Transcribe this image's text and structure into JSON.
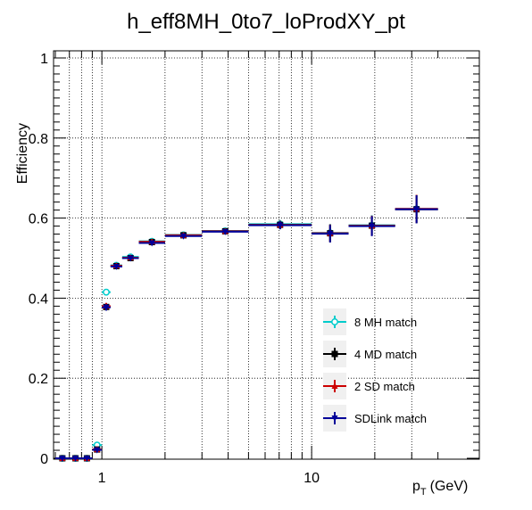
{
  "chart_data": {
    "type": "scatter",
    "title": "h_eff8MH_0to7_loProdXY_pt",
    "xlabel_main": "p",
    "xlabel_sub": "T",
    "xlabel_unit": "(GeV)",
    "ylabel": "Efficiency",
    "xscale": "log",
    "xlim": [
      0.6,
      40
    ],
    "ylim": [
      0,
      1.02
    ],
    "grid": true,
    "legend_position": "bottom-right",
    "x_tick_labels": [
      {
        "value": 1,
        "label": "1"
      },
      {
        "value": 10,
        "label": "10"
      }
    ],
    "y_tick_labels": [
      {
        "value": 0,
        "label": "0"
      },
      {
        "value": 0.2,
        "label": "0.2"
      },
      {
        "value": 0.4,
        "label": "0.4"
      },
      {
        "value": 0.6,
        "label": "0.6"
      },
      {
        "value": 0.8,
        "label": "0.8"
      },
      {
        "value": 1,
        "label": "1"
      }
    ],
    "bins": [
      [
        0.6,
        0.7
      ],
      [
        0.7,
        0.8
      ],
      [
        0.8,
        0.9
      ],
      [
        0.9,
        1.0
      ],
      [
        1.0,
        1.1
      ],
      [
        1.1,
        1.25
      ],
      [
        1.25,
        1.5
      ],
      [
        1.5,
        2.0
      ],
      [
        2.0,
        3.0
      ],
      [
        3.0,
        5.0
      ],
      [
        5.0,
        10.0
      ],
      [
        10.0,
        15.0
      ],
      [
        15.0,
        25.0
      ],
      [
        25.0,
        40.0
      ]
    ],
    "series": [
      {
        "name": "8 MH match",
        "color": "#00cccc",
        "marker": "open-circle",
        "values": [
          0.0,
          0.0,
          0.0,
          0.033,
          0.415,
          0.482,
          0.503,
          0.542,
          0.558,
          0.568,
          0.585,
          0.563,
          0.582,
          0.623
        ],
        "errors": [
          0.002,
          0.002,
          0.002,
          0.007,
          0.008,
          0.006,
          0.006,
          0.006,
          0.006,
          0.007,
          0.01,
          0.022,
          0.025,
          0.035
        ]
      },
      {
        "name": "4 MD match",
        "color": "#000000",
        "marker": "filled-square",
        "values": [
          0.0,
          0.0,
          0.0,
          0.022,
          0.378,
          0.48,
          0.5,
          0.54,
          0.557,
          0.567,
          0.583,
          0.562,
          0.581,
          0.622
        ],
        "errors": [
          0.002,
          0.002,
          0.002,
          0.006,
          0.008,
          0.006,
          0.006,
          0.006,
          0.006,
          0.007,
          0.01,
          0.022,
          0.025,
          0.035
        ]
      },
      {
        "name": "2 SD match",
        "color": "#cc0000",
        "marker": "filled-triangle-up",
        "values": [
          0.0,
          0.0,
          0.0,
          0.022,
          0.38,
          0.481,
          0.501,
          0.541,
          0.557,
          0.567,
          0.583,
          0.562,
          0.581,
          0.623
        ],
        "errors": [
          0.002,
          0.002,
          0.002,
          0.006,
          0.008,
          0.006,
          0.006,
          0.006,
          0.006,
          0.007,
          0.01,
          0.022,
          0.025,
          0.035
        ]
      },
      {
        "name": "SDLink match",
        "color": "#000099",
        "marker": "filled-triangle-down",
        "values": [
          0.0,
          0.0,
          0.0,
          0.021,
          0.377,
          0.479,
          0.5,
          0.538,
          0.555,
          0.566,
          0.582,
          0.561,
          0.58,
          0.622
        ],
        "errors": [
          0.002,
          0.002,
          0.002,
          0.006,
          0.008,
          0.006,
          0.006,
          0.006,
          0.006,
          0.007,
          0.01,
          0.022,
          0.025,
          0.035
        ]
      }
    ]
  }
}
